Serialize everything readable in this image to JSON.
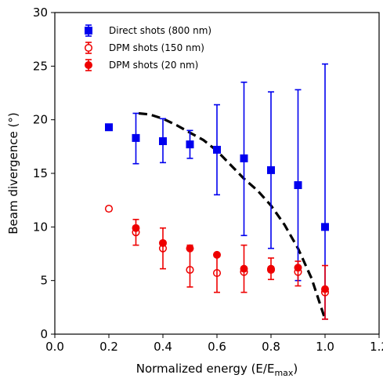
{
  "chart_data": {
    "type": "scatter",
    "xlabel": "Normalized energy (E/E",
    "xlabel_sub": "max",
    "xlabel_end": ")",
    "ylabel": "Beam divergence (°)",
    "xlim": [
      0.0,
      1.2
    ],
    "ylim": [
      0,
      30
    ],
    "xticks": [
      0.0,
      0.2,
      0.4,
      0.6,
      0.8,
      1.0,
      1.2
    ],
    "xtick_labels": [
      "0.0",
      "0.2",
      "0.4",
      "0.6",
      "0.8",
      "1.0",
      "1.2"
    ],
    "yticks": [
      0,
      5,
      10,
      15,
      20,
      25,
      30
    ],
    "ytick_labels": [
      "0",
      "5",
      "10",
      "15",
      "20",
      "25",
      "30"
    ],
    "grid": false,
    "legend_position": "top-left",
    "series": [
      {
        "name": "Direct shots (800 nm)",
        "marker": "square-filled",
        "color": "#0000ee",
        "x": [
          0.2,
          0.3,
          0.4,
          0.5,
          0.6,
          0.7,
          0.8,
          0.9,
          1.0
        ],
        "y": [
          19.3,
          18.3,
          18.0,
          17.7,
          17.2,
          16.4,
          15.3,
          13.9,
          10.0
        ],
        "yerr_low": [
          19.3,
          15.9,
          16.0,
          16.4,
          13.0,
          9.2,
          8.0,
          5.0,
          1.4
        ],
        "yerr_high": [
          19.3,
          20.6,
          20.1,
          19.0,
          21.4,
          23.5,
          22.6,
          22.8,
          25.2
        ]
      },
      {
        "name": "DPM shots (150 nm)",
        "marker": "circle-open",
        "color": "#ee0000",
        "x": [
          0.2,
          0.3,
          0.4,
          0.5,
          0.6,
          0.7,
          0.8,
          0.9,
          1.0
        ],
        "y": [
          11.7,
          9.5,
          8.0,
          6.0,
          5.7,
          5.8,
          6.0,
          5.8,
          3.9
        ],
        "yerr_low": [
          11.5,
          9.5,
          8.0,
          6.0,
          5.7,
          5.8,
          6.0,
          5.8,
          3.9
        ],
        "yerr_high": [
          11.9,
          9.5,
          8.0,
          6.0,
          5.7,
          5.8,
          6.0,
          5.8,
          3.9
        ]
      },
      {
        "name": "DPM shots (20 nm)",
        "marker": "circle-filled",
        "color": "#ee0000",
        "x": [
          0.3,
          0.4,
          0.5,
          0.6,
          0.7,
          0.8,
          0.9,
          1.0
        ],
        "y": [
          9.9,
          8.5,
          8.0,
          7.4,
          6.1,
          6.1,
          6.2,
          4.2
        ],
        "yerr_low": [
          8.3,
          6.1,
          4.4,
          3.9,
          3.9,
          5.1,
          4.5,
          1.4
        ],
        "yerr_high": [
          10.7,
          9.9,
          8.3,
          7.4,
          8.3,
          7.1,
          6.8,
          6.4
        ]
      }
    ],
    "dashed_curve": {
      "color": "#000000",
      "x": [
        0.31,
        0.35,
        0.4,
        0.45,
        0.5,
        0.55,
        0.6,
        0.65,
        0.7,
        0.75,
        0.8,
        0.85,
        0.9,
        0.95,
        1.0
      ],
      "y": [
        20.6,
        20.5,
        20.1,
        19.5,
        18.8,
        18.1,
        17.1,
        15.8,
        14.5,
        13.4,
        12.0,
        10.2,
        8.0,
        5.2,
        1.4
      ]
    }
  }
}
